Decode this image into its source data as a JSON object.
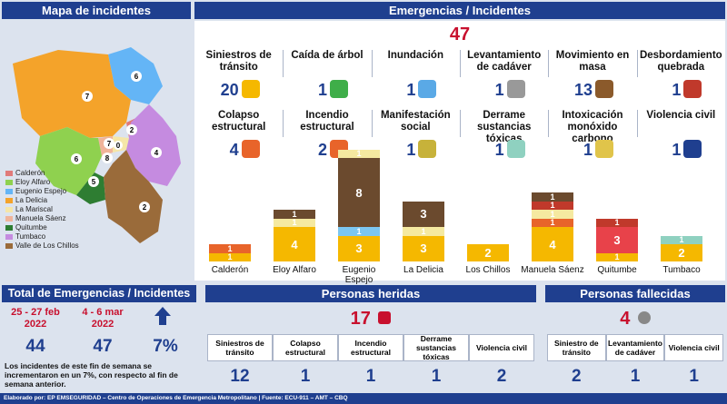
{
  "map": {
    "header": "Mapa de incidentes",
    "markers": [
      "6",
      "7",
      "2",
      "7",
      "4",
      "6",
      "8",
      "0",
      "5",
      "2"
    ],
    "legend": [
      {
        "name": "Calderón",
        "color": "#e07a7a"
      },
      {
        "name": "Eloy Alfaro",
        "color": "#8fd14f"
      },
      {
        "name": "Eugenio Espejo",
        "color": "#64b5f6"
      },
      {
        "name": "La Delicia",
        "color": "#f4a32a"
      },
      {
        "name": "La Mariscal",
        "color": "#f5e6a8"
      },
      {
        "name": "Manuela Sáenz",
        "color": "#f0b49a"
      },
      {
        "name": "Quitumbe",
        "color": "#2e7d32"
      },
      {
        "name": "Tumbaco",
        "color": "#c58be0"
      },
      {
        "name": "Valle de Los Chillos",
        "color": "#9a6b3a"
      }
    ]
  },
  "emergencias": {
    "header": "Emergencias / Incidentes",
    "total": "47",
    "row1": [
      {
        "label": "Siniestros de tránsito",
        "value": "20",
        "icon": "car-crash-icon"
      },
      {
        "label": "Caída de árbol",
        "value": "1",
        "icon": "fallen-tree-icon"
      },
      {
        "label": "Inundación",
        "value": "1",
        "icon": "flood-house-icon"
      },
      {
        "label": "Levantamiento de cadáver",
        "value": "1",
        "icon": "fallen-person-icon"
      },
      {
        "label": "Movimiento en masa",
        "value": "13",
        "icon": "landslide-icon"
      },
      {
        "label": "Desbordamiento quebrada",
        "value": "1",
        "icon": "overflow-icon"
      }
    ],
    "row2": [
      {
        "label": "Colapso estructural",
        "value": "4",
        "icon": "collapse-house-icon"
      },
      {
        "label": "Incendio estructural",
        "value": "2",
        "icon": "fire-house-icon"
      },
      {
        "label": "Manifestación social",
        "value": "1",
        "icon": "protest-icon"
      },
      {
        "label": "Derrame sustancias tóxicas",
        "value": "1",
        "icon": "toxic-spill-icon"
      },
      {
        "label": "Intoxicación monóxido carbono",
        "value": "1",
        "icon": "co-intoxication-icon"
      },
      {
        "label": "Violencia civil",
        "value": "1",
        "icon": "violence-icon"
      }
    ]
  },
  "chart_data": {
    "type": "bar",
    "categories": [
      "Calderón",
      "Eloy Alfaro",
      "Eugenio Espejo",
      "La Delicia",
      "Los Chillos",
      "Manuela Sáenz",
      "Quitumbe",
      "Tumbaco"
    ],
    "stacks": [
      [
        {
          "v": 1,
          "c": "#f5b800",
          "label": "1"
        },
        {
          "v": 1,
          "c": "#e8642a",
          "label": "1"
        }
      ],
      [
        {
          "v": 4,
          "c": "#f5b800",
          "label": "4"
        },
        {
          "v": 1,
          "c": "#f5e9a0",
          "label": "1"
        },
        {
          "v": 1,
          "c": "#6b4a2e",
          "label": "1"
        }
      ],
      [
        {
          "v": 3,
          "c": "#f5b800",
          "label": "3"
        },
        {
          "v": 1,
          "c": "#7cc6f0",
          "label": "1"
        },
        {
          "v": 8,
          "c": "#6b4a2e",
          "label": "8"
        },
        {
          "v": 1,
          "c": "#f5e9a0",
          "label": "1"
        }
      ],
      [
        {
          "v": 3,
          "c": "#f5b800",
          "label": "3"
        },
        {
          "v": 1,
          "c": "#f5e9a0",
          "label": "1"
        },
        {
          "v": 3,
          "c": "#6b4a2e",
          "label": "3"
        }
      ],
      [
        {
          "v": 2,
          "c": "#f5b800",
          "label": "2"
        }
      ],
      [
        {
          "v": 4,
          "c": "#f5b800",
          "label": "4"
        },
        {
          "v": 1,
          "c": "#e8642a",
          "label": "1"
        },
        {
          "v": 1,
          "c": "#f5e9a0",
          "label": "1"
        },
        {
          "v": 1,
          "c": "#c0392b",
          "label": "1"
        },
        {
          "v": 1,
          "c": "#6b4a2e",
          "label": "1"
        }
      ],
      [
        {
          "v": 1,
          "c": "#f5b800",
          "label": "1"
        },
        {
          "v": 3,
          "c": "#e8424a",
          "label": "3"
        },
        {
          "v": 1,
          "c": "#c0392b",
          "label": "1"
        }
      ],
      [
        {
          "v": 2,
          "c": "#f5b800",
          "label": "2"
        },
        {
          "v": 1,
          "c": "#8fd1c0",
          "label": "1"
        }
      ]
    ]
  },
  "total_box": {
    "header": "Total de Emergencias / Incidentes",
    "period1": "25 - 27 feb 2022",
    "period2": "4 - 6 mar 2022",
    "val1": "44",
    "val2": "47",
    "pct": "7%",
    "note": "Los incidentes de este fin de semana se incrementaron en un 7%, con respecto al fin de semana anterior."
  },
  "heridas": {
    "header": "Personas heridas",
    "total": "17",
    "cols": [
      "Siniestros de tránsito",
      "Colapso estructural",
      "Incendio estructural",
      "Derrame sustancias tóxicas",
      "Violencia civil"
    ],
    "vals": [
      "12",
      "1",
      "1",
      "1",
      "2"
    ]
  },
  "fallecidas": {
    "header": "Personas fallecidas",
    "total": "4",
    "cols": [
      "Siniestro de tránsito",
      "Levantamiento de cadáver",
      "Violencia civil"
    ],
    "vals": [
      "2",
      "1",
      "1"
    ]
  },
  "footer": "Elaborado por: EP EMSEGURIDAD – Centro de Operaciones de Emergencia Metropolitano | Fuente: ECU-911 – AMT – CBQ"
}
